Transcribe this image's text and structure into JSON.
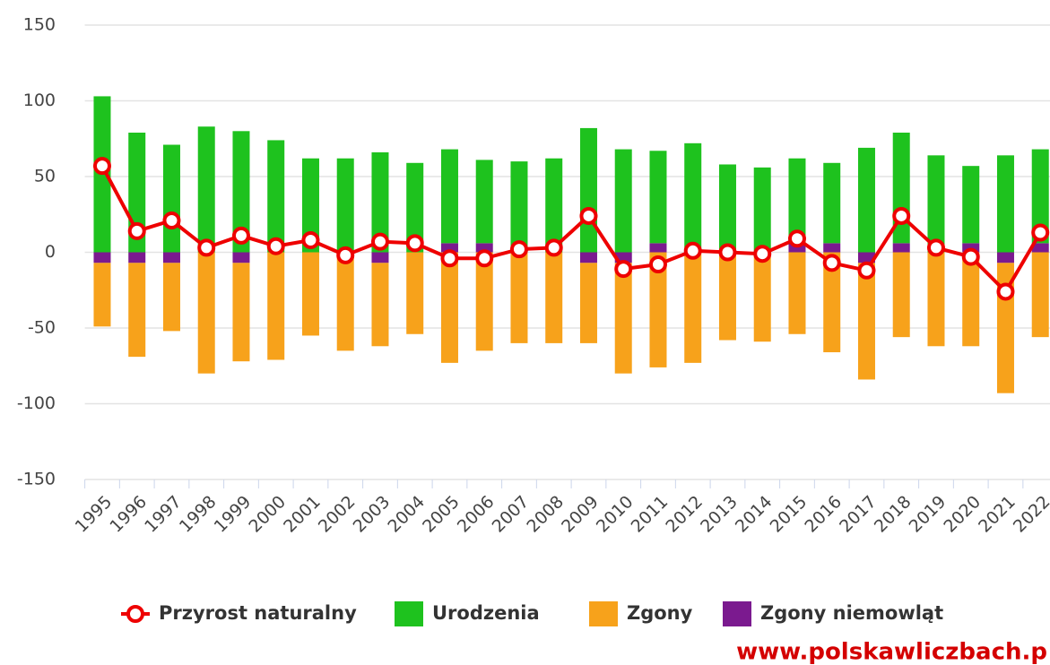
{
  "chart_data": {
    "type": "bar",
    "categories": [
      "1995",
      "1996",
      "1997",
      "1998",
      "1999",
      "2000",
      "2001",
      "2002",
      "2003",
      "2004",
      "2005",
      "2006",
      "2007",
      "2008",
      "2009",
      "2010",
      "2011",
      "2012",
      "2013",
      "2014",
      "2015",
      "2016",
      "2017",
      "2018",
      "2019",
      "2020",
      "2021",
      "2022"
    ],
    "series": [
      {
        "name": "Przyrost naturalny",
        "type": "line",
        "color": "#ee0000",
        "values": [
          57,
          14,
          21,
          3,
          11,
          4,
          8,
          -2,
          7,
          6,
          -4,
          -4,
          2,
          3,
          24,
          -11,
          -8,
          1,
          0,
          -1,
          9,
          -7,
          -12,
          24,
          3,
          -3,
          -26,
          13
        ]
      },
      {
        "name": "Urodzenia",
        "type": "bar",
        "color": "#1ec21e",
        "values": [
          103,
          79,
          71,
          83,
          80,
          74,
          62,
          62,
          66,
          59,
          62,
          55,
          60,
          62,
          82,
          68,
          61,
          72,
          58,
          56,
          56,
          53,
          69,
          73,
          64,
          51,
          64,
          62
        ]
      },
      {
        "name": "Zgony",
        "type": "bar",
        "color": "#f7a21b",
        "values": [
          -42,
          -62,
          -45,
          -80,
          -65,
          -71,
          -55,
          -65,
          -55,
          -54,
          -73,
          -65,
          -60,
          -60,
          -53,
          -73,
          -76,
          -73,
          -58,
          -59,
          -54,
          -66,
          -77,
          -56,
          -62,
          -62,
          -86,
          -56
        ]
      },
      {
        "name": "Zgony niemowląt",
        "type": "bar",
        "color": "#7b1a8f",
        "values": [
          -7,
          -7,
          -7,
          0,
          -7,
          0,
          0,
          0,
          -7,
          0,
          6,
          6,
          0,
          0,
          -7,
          -7,
          6,
          0,
          0,
          0,
          6,
          6,
          -7,
          6,
          0,
          6,
          -7,
          6
        ]
      }
    ],
    "ylim": [
      -150,
      150
    ],
    "yticks": [
      -150,
      -100,
      -50,
      0,
      50,
      100,
      150
    ],
    "grid": true,
    "watermark": "www.polskawliczbach.p"
  }
}
